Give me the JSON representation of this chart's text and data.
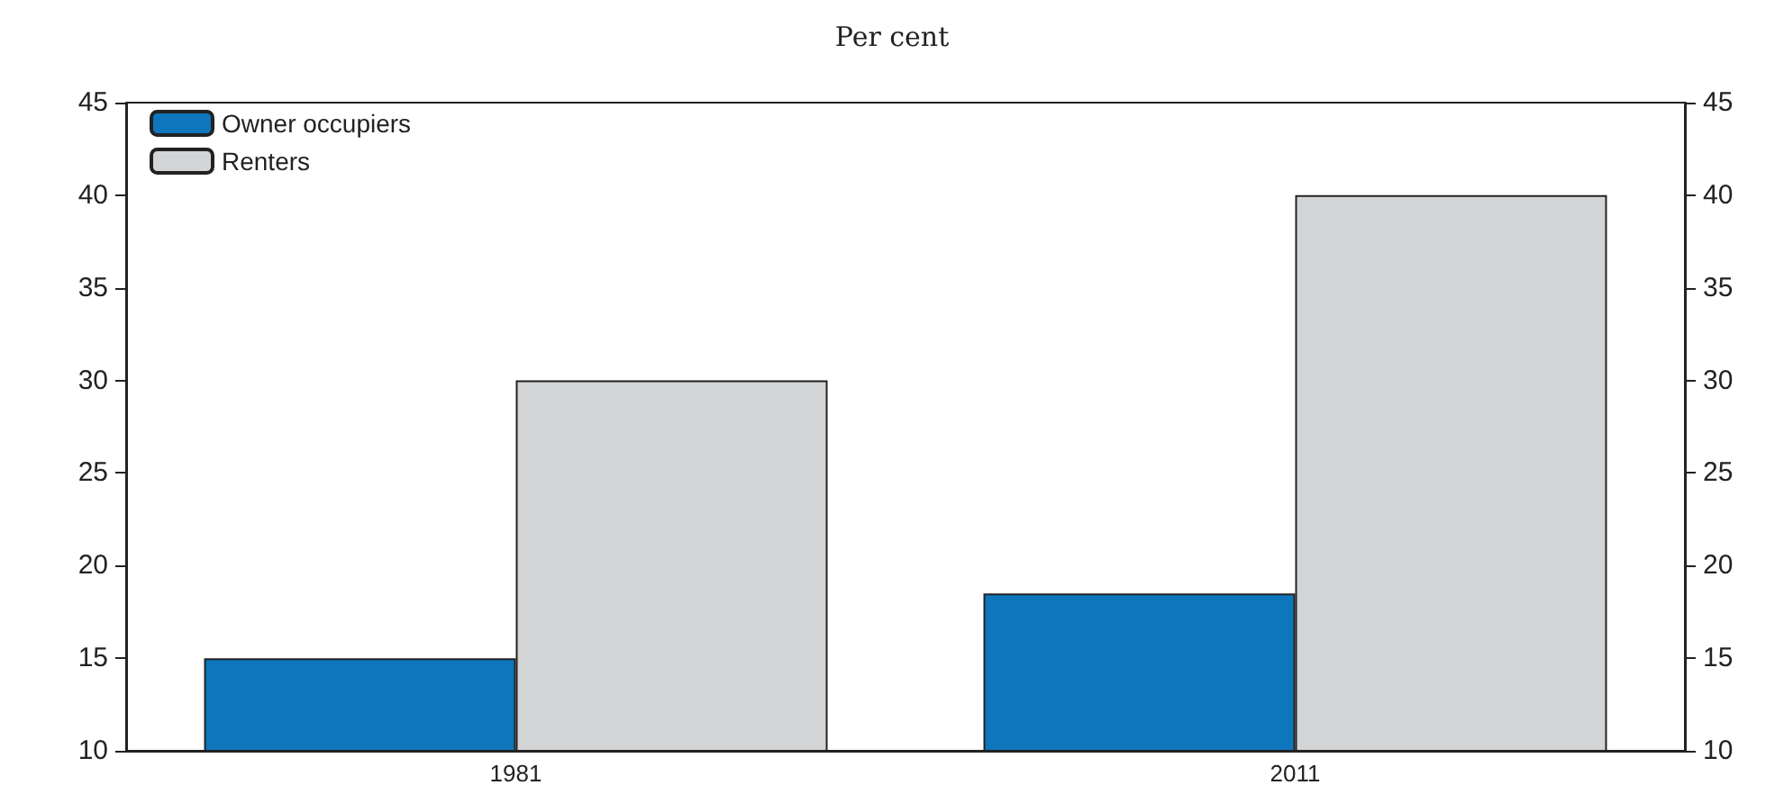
{
  "chart_data": {
    "type": "bar",
    "title": "Per cent",
    "categories": [
      "1981",
      "2011"
    ],
    "series": [
      {
        "name": "Owner occupiers",
        "color": "#0e76bc",
        "values": [
          15,
          18.5
        ]
      },
      {
        "name": "Renters",
        "color": "#d3d4d6",
        "values": [
          30,
          40
        ]
      }
    ],
    "ylim": [
      10,
      45
    ],
    "yticks": [
      10,
      15,
      20,
      25,
      30,
      35,
      40,
      45
    ],
    "y2lim": [
      10,
      45
    ],
    "y2ticks": [
      10,
      15,
      20,
      25,
      30,
      35,
      40,
      45
    ],
    "grid": false,
    "legend": "top left"
  }
}
